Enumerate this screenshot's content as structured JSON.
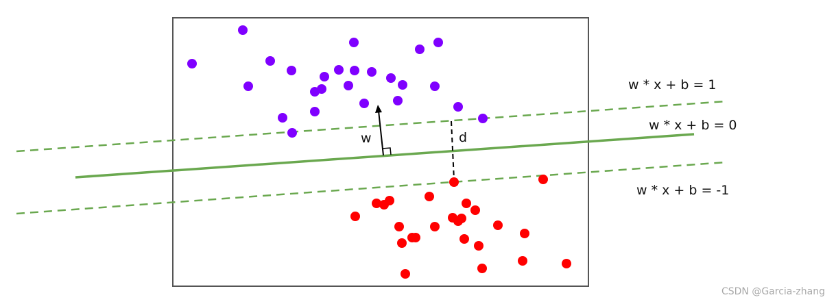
{
  "labels": {
    "line_pos": "w * x + b = 1",
    "line_zero": "w * x + b = 0",
    "line_neg": "w * x + b = -1",
    "normal_vector": "w",
    "margin": "d"
  },
  "watermark": "CSDN @Garcia-zhang",
  "colors": {
    "purple": "#7f00ff",
    "red": "#ff0000",
    "green": "#6aa84f",
    "frame": "#555555"
  }
}
